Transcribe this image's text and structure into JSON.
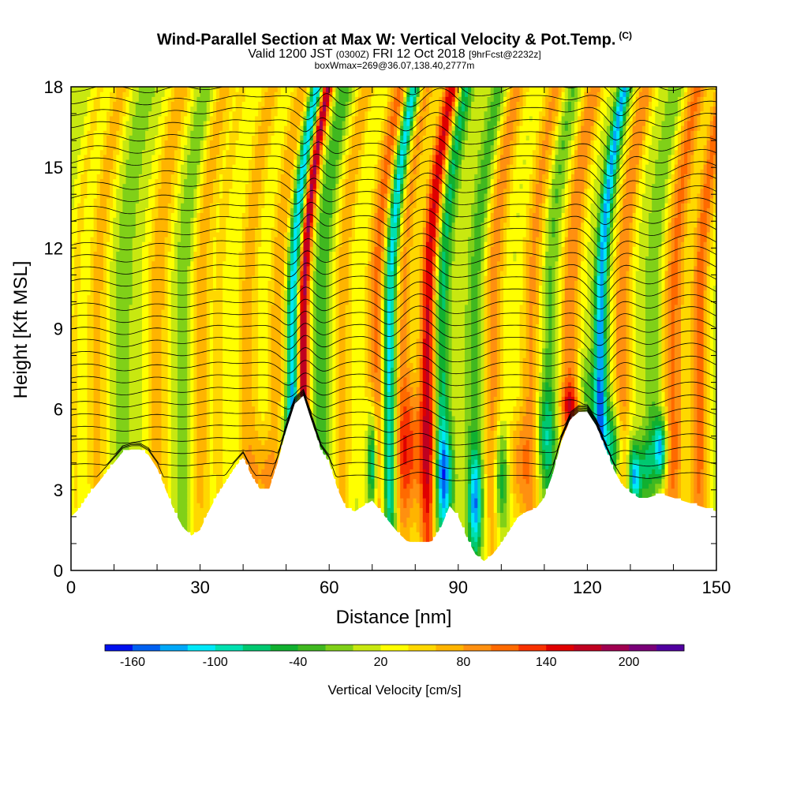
{
  "header": {
    "title": "Wind-Parallel Section at Max W: Vertical Velocity & Pot.Temp.",
    "title_mark": "(C)",
    "valid_prefix": "Valid 1200 JST",
    "valid_zulu": "(0300Z)",
    "valid_date": "FRI 12 Oct 2018",
    "forecast": "[9hrFcst@2232z]",
    "box_info": "boxWmax=269@36.07,138.40,2777m"
  },
  "colors": {
    "scale": [
      "#0010ee",
      "#0060f0",
      "#00a8f8",
      "#00e8f8",
      "#00e0b0",
      "#00c870",
      "#10b030",
      "#40b820",
      "#80d018",
      "#c8e810",
      "#ffff00",
      "#ffd800",
      "#ffb400",
      "#ff9010",
      "#ff6a00",
      "#f83200",
      "#e00000",
      "#c00020",
      "#a00050",
      "#7a0078",
      "#5000a0"
    ],
    "terrain": "#ffffff",
    "contour": "#000000"
  },
  "chart_data": {
    "type": "heatmap",
    "xlabel": "Distance [nm]",
    "ylabel": "Height [Kft MSL]",
    "xlim": [
      0,
      150
    ],
    "ylim": [
      0,
      18
    ],
    "x_ticks": [
      0,
      30,
      60,
      90,
      120,
      150
    ],
    "y_ticks": [
      0,
      3,
      6,
      9,
      12,
      15,
      18
    ],
    "colorbar": {
      "title": "Vertical Velocity [cm/s]",
      "min": -180,
      "max": 240,
      "step": 20,
      "tick_values": [
        -160,
        -100,
        -40,
        20,
        80,
        140,
        200
      ],
      "tick_labels": [
        "-160",
        "-100",
        "-40",
        "20",
        "80",
        "140",
        "200"
      ]
    },
    "terrain_profile": {
      "x": [
        0,
        2,
        4,
        6,
        8,
        10,
        12,
        14,
        16,
        18,
        20,
        22,
        24,
        26,
        28,
        30,
        32,
        34,
        36,
        38,
        40,
        42,
        44,
        46,
        48,
        50,
        52,
        54,
        56,
        58,
        60,
        62,
        64,
        66,
        68,
        70,
        72,
        74,
        76,
        78,
        80,
        82,
        84,
        86,
        88,
        90,
        92,
        94,
        96,
        98,
        100,
        102,
        104,
        106,
        108,
        110,
        112,
        114,
        116,
        118,
        120,
        122,
        124,
        126,
        128,
        130,
        132,
        134,
        136,
        138,
        140,
        142,
        144,
        146,
        148,
        150
      ],
      "y": [
        2.0,
        2.3,
        2.8,
        3.2,
        3.6,
        4.0,
        4.4,
        4.5,
        4.5,
        4.3,
        3.8,
        3.0,
        2.2,
        1.6,
        1.3,
        1.5,
        2.2,
        2.8,
        3.3,
        3.8,
        4.2,
        3.5,
        3.0,
        3.0,
        4.0,
        5.2,
        6.2,
        6.5,
        5.5,
        4.5,
        4.0,
        3.0,
        2.3,
        2.2,
        2.4,
        2.6,
        2.2,
        1.8,
        1.4,
        1.1,
        1.0,
        1.0,
        1.1,
        1.6,
        2.4,
        2.0,
        1.2,
        0.6,
        0.35,
        0.6,
        1.0,
        1.5,
        2.0,
        2.2,
        2.3,
        2.7,
        3.6,
        4.8,
        5.6,
        5.9,
        5.9,
        5.4,
        4.6,
        3.8,
        3.2,
        2.9,
        2.7,
        2.7,
        2.8,
        2.8,
        2.7,
        2.6,
        2.5,
        2.4,
        2.3,
        2.2
      ]
    },
    "features": [
      {
        "x": 1,
        "w": 1.5,
        "amp": 30
      },
      {
        "x": 6,
        "w": 2.2,
        "amp": 55
      },
      {
        "x": 12,
        "w": 2.2,
        "amp": -30
      },
      {
        "x": 20,
        "w": 2.5,
        "amp": 60
      },
      {
        "x": 26,
        "w": 2.0,
        "amp": -35
      },
      {
        "x": 30,
        "w": 2.5,
        "amp": 55
      },
      {
        "x": 34.5,
        "w": 1.5,
        "amp": 30
      },
      {
        "x": 41,
        "w": 2.5,
        "amp": 55
      },
      {
        "x": 48,
        "w": 2.2,
        "amp": 60
      },
      {
        "x": 51.5,
        "w": 1.4,
        "amp": -140
      },
      {
        "x": 54,
        "w": 1.3,
        "amp": 175
      },
      {
        "x": 58,
        "w": 1.8,
        "amp": -55
      },
      {
        "x": 63,
        "w": 2.0,
        "amp": 60
      },
      {
        "x": 71,
        "w": 2.4,
        "amp": 95
      },
      {
        "x": 74,
        "w": 1.6,
        "amp": -150
      },
      {
        "x": 77,
        "w": 2.2,
        "amp": 70
      },
      {
        "x": 83,
        "w": 2.0,
        "amp": 150
      },
      {
        "x": 86,
        "w": 1.8,
        "amp": -90
      },
      {
        "x": 94,
        "w": 2.0,
        "amp": -50
      },
      {
        "x": 98,
        "w": 2.5,
        "amp": 75
      },
      {
        "x": 107,
        "w": 2.4,
        "amp": 70
      },
      {
        "x": 111,
        "w": 1.8,
        "amp": -40
      },
      {
        "x": 116,
        "w": 2.2,
        "amp": 85
      },
      {
        "x": 123,
        "w": 1.4,
        "amp": -145
      },
      {
        "x": 128,
        "w": 2.0,
        "amp": 85
      },
      {
        "x": 135,
        "w": 1.8,
        "amp": -35
      },
      {
        "x": 140,
        "w": 2.4,
        "amp": 90
      },
      {
        "x": 146,
        "w": 2.0,
        "amp": 95
      }
    ],
    "low_features": [
      {
        "x": 45,
        "y": 3.5,
        "wx": 3.5,
        "wy": 1.8,
        "amp": 55
      },
      {
        "x": 50,
        "y": 4.8,
        "wx": 2.5,
        "wy": 1.5,
        "amp": -60
      },
      {
        "x": 70,
        "y": 4.0,
        "wx": 1.2,
        "wy": 2.0,
        "amp": -170
      },
      {
        "x": 79,
        "y": 4.5,
        "wx": 3.0,
        "wy": 2.5,
        "amp": 80
      },
      {
        "x": 87,
        "y": 3.5,
        "wx": 1.8,
        "wy": 1.8,
        "amp": -110
      },
      {
        "x": 94,
        "y": 2.5,
        "wx": 1.6,
        "wy": 1.8,
        "amp": -120
      },
      {
        "x": 100,
        "y": 3.5,
        "wx": 1.6,
        "wy": 2.0,
        "amp": -110
      },
      {
        "x": 104,
        "y": 4.0,
        "wx": 3.0,
        "wy": 2.0,
        "amp": 60
      },
      {
        "x": 110,
        "y": 5.0,
        "wx": 2.5,
        "wy": 2.0,
        "amp": -70
      },
      {
        "x": 116,
        "y": 6.2,
        "wx": 2.5,
        "wy": 0.8,
        "amp": 75
      },
      {
        "x": 120,
        "y": 6.5,
        "wx": 3.0,
        "wy": 1.5,
        "amp": -50
      },
      {
        "x": 126,
        "y": 4.5,
        "wx": 2.5,
        "wy": 1.6,
        "amp": -110
      },
      {
        "x": 131,
        "y": 3.5,
        "wx": 1.6,
        "wy": 1.2,
        "amp": -150
      },
      {
        "x": 134,
        "y": 4.0,
        "wx": 1.6,
        "wy": 1.2,
        "amp": -80
      },
      {
        "x": 137,
        "y": 4.5,
        "wx": 1.6,
        "wy": 1.2,
        "amp": -180
      },
      {
        "x": 136,
        "y": 4.0,
        "wx": 3.0,
        "wy": 1.5,
        "amp": 40
      }
    ],
    "contour_count": 36
  }
}
